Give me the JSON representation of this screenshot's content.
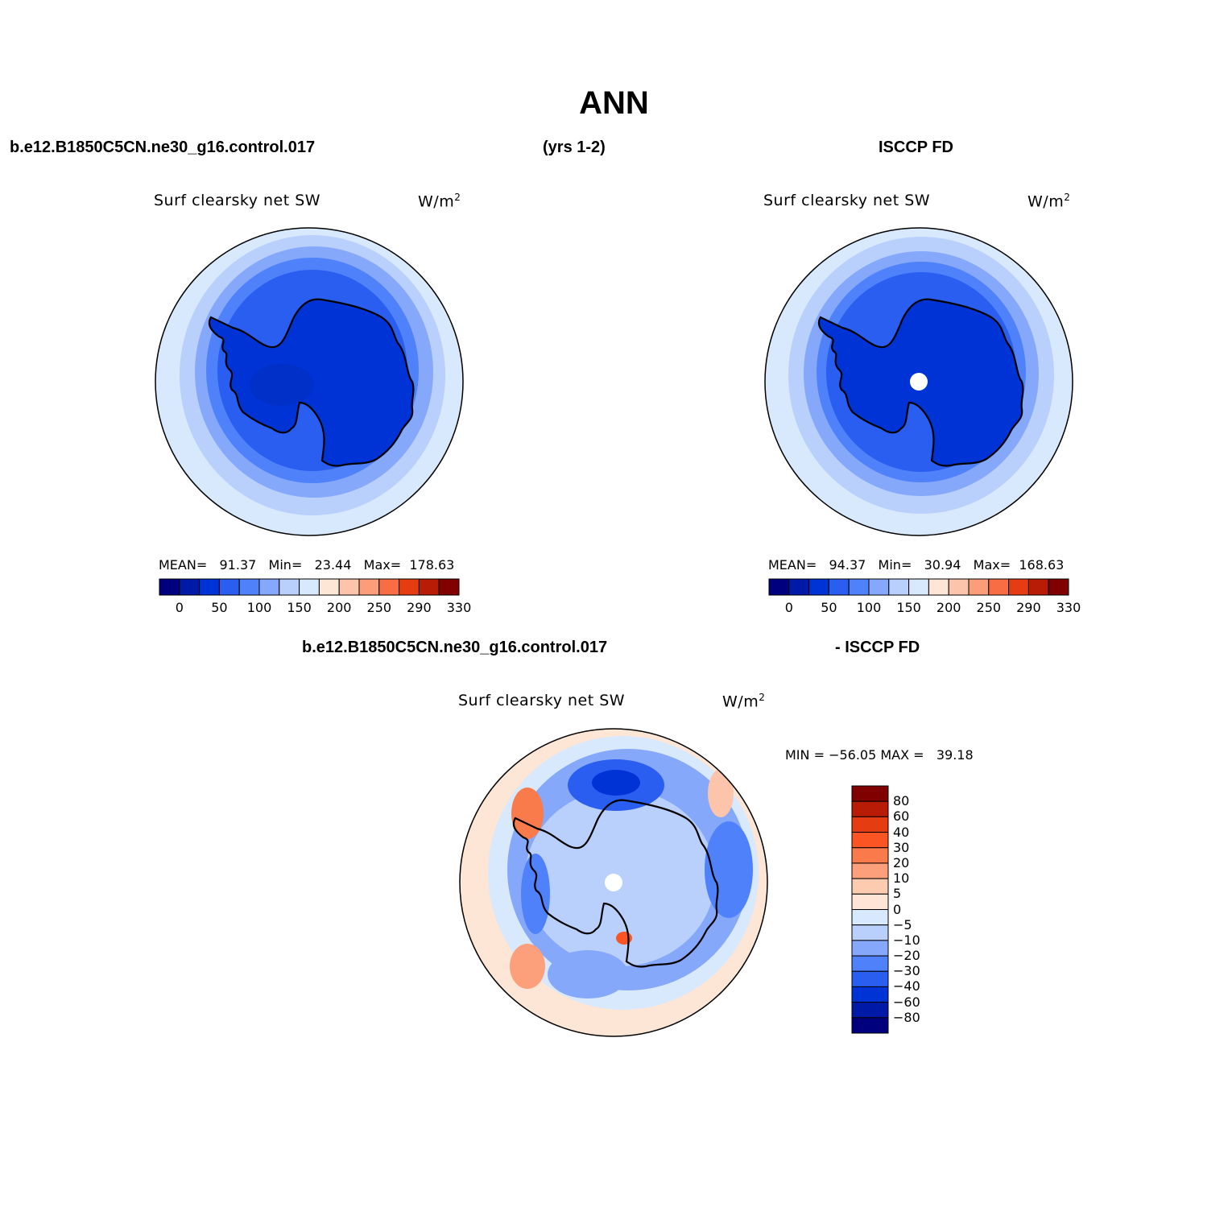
{
  "main_title": "ANN",
  "header": {
    "case_name": "b.e12.B1850C5CN.ne30_g16.control.017",
    "years": "(yrs 1-2)",
    "obs_name": "ISCCP FD"
  },
  "diff_header": {
    "case_name": "b.e12.B1850C5CN.ne30_g16.control.017",
    "obs_name": "- ISCCP FD"
  },
  "panels": {
    "model": {
      "title": "Surf  clearsky  net  SW",
      "units": "W/m",
      "units_sup": "2",
      "stats": "MEAN=   91.37   Min=   23.44   Max=  178.63",
      "colorbar_ticks": [
        "0",
        "50",
        "100",
        "150",
        "200",
        "250",
        "290",
        "330"
      ]
    },
    "obs": {
      "title": "Surf  clearsky  net  SW",
      "units": "W/m",
      "units_sup": "2",
      "stats": "MEAN=   94.37   Min=   30.94   Max=  168.63",
      "colorbar_ticks": [
        "0",
        "50",
        "100",
        "150",
        "200",
        "250",
        "290",
        "330"
      ]
    },
    "diff": {
      "title": "Surf  clearsky  net  SW",
      "units": "W/m",
      "units_sup": "2",
      "stats": "MIN = −56.05 MAX =   39.18",
      "colorbar_ticks": [
        "80",
        "60",
        "40",
        "30",
        "20",
        "10",
        "5",
        "0",
        "−5",
        "−10",
        "−20",
        "−30",
        "−40",
        "−60",
        "−80"
      ]
    }
  },
  "colors": {
    "abs_scale": [
      "#00007f",
      "#001aa8",
      "#0033d6",
      "#2a5ef0",
      "#4f82fa",
      "#86a8fb",
      "#b9cffc",
      "#d8e8fd",
      "#fde6d6",
      "#fcc5ab",
      "#fa9d78",
      "#f86d43",
      "#e63c12",
      "#b81c06",
      "#800000"
    ],
    "diff_scale": [
      "#800000",
      "#b81c06",
      "#e63c12",
      "#fa5522",
      "#f97a4a",
      "#fca07c",
      "#fdcbb0",
      "#fde6d6",
      "#d8e8fd",
      "#b9cffc",
      "#86a8fb",
      "#4f82fa",
      "#2a5ef0",
      "#0033d6",
      "#001aa8",
      "#00007f"
    ]
  }
}
